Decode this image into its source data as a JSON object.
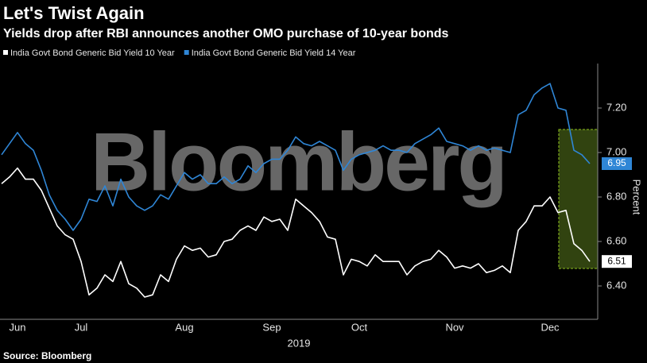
{
  "chart_data": {
    "type": "line",
    "title": "Let's Twist Again",
    "subtitle": "Yields drop after RBI announces another OMO purchase of 10-year bonds",
    "watermark": "Bloomberg",
    "source": "Source: Bloomberg",
    "y_label": "Percent",
    "x_label": "2019",
    "grid": false,
    "legend_position": "top-left",
    "categories": [
      null,
      null,
      "Jun",
      null,
      null,
      null,
      null,
      null,
      null,
      null,
      "Jul",
      null,
      null,
      null,
      null,
      null,
      null,
      null,
      null,
      null,
      null,
      null,
      null,
      "Aug",
      null,
      null,
      null,
      null,
      null,
      null,
      null,
      null,
      null,
      null,
      "Sep",
      null,
      null,
      null,
      null,
      null,
      null,
      null,
      null,
      null,
      null,
      "Oct",
      null,
      null,
      null,
      null,
      null,
      null,
      null,
      null,
      null,
      null,
      null,
      "Nov",
      null,
      null,
      null,
      null,
      null,
      null,
      null,
      null,
      null,
      null,
      null,
      "Dec",
      null,
      null,
      null,
      null,
      null
    ],
    "series": [
      {
        "name": "India Govt Bond Generic Bid Yield 10 Year",
        "color": "#ffffff",
        "values": [
          6.86,
          6.89,
          6.93,
          6.88,
          6.88,
          6.83,
          6.75,
          6.67,
          6.63,
          6.61,
          6.51,
          6.36,
          6.39,
          6.45,
          6.42,
          6.51,
          6.41,
          6.39,
          6.35,
          6.36,
          6.45,
          6.42,
          6.52,
          6.58,
          6.56,
          6.57,
          6.53,
          6.54,
          6.6,
          6.61,
          6.65,
          6.67,
          6.65,
          6.71,
          6.69,
          6.7,
          6.65,
          6.79,
          6.76,
          6.73,
          6.69,
          6.62,
          6.61,
          6.45,
          6.52,
          6.51,
          6.49,
          6.54,
          6.51,
          6.51,
          6.51,
          6.45,
          6.49,
          6.51,
          6.52,
          6.56,
          6.53,
          6.48,
          6.49,
          6.48,
          6.5,
          6.46,
          6.47,
          6.49,
          6.46,
          6.65,
          6.69,
          6.76,
          6.76,
          6.8,
          6.73,
          6.74,
          6.59,
          6.56,
          6.51
        ]
      },
      {
        "name": "India Govt Bond Generic Bid Yield 14 Year",
        "color": "#2f86d6",
        "values": [
          6.99,
          7.04,
          7.09,
          7.04,
          7.01,
          6.92,
          6.81,
          6.74,
          6.7,
          6.65,
          6.7,
          6.79,
          6.78,
          6.85,
          6.76,
          6.88,
          6.8,
          6.76,
          6.74,
          6.76,
          6.81,
          6.79,
          6.85,
          6.91,
          6.88,
          6.9,
          6.86,
          6.86,
          6.89,
          6.86,
          6.88,
          6.94,
          6.91,
          6.95,
          6.97,
          6.97,
          7.01,
          7.07,
          7.04,
          7.03,
          7.05,
          7.03,
          7.01,
          6.92,
          6.97,
          6.99,
          7.0,
          7.01,
          7.03,
          7.01,
          7.01,
          7.0,
          7.04,
          7.06,
          7.08,
          7.11,
          7.05,
          7.04,
          7.03,
          7.01,
          7.03,
          7.01,
          7.02,
          7.01,
          7.0,
          7.17,
          7.19,
          7.26,
          7.29,
          7.31,
          7.2,
          7.19,
          7.01,
          6.99,
          6.95
        ]
      }
    ],
    "ylim": [
      6.26,
      7.4
    ],
    "yticks": [
      {
        "value": 6.4,
        "label": "6.40"
      },
      {
        "value": 6.6,
        "label": "6.60"
      },
      {
        "value": 6.8,
        "label": "6.80"
      },
      {
        "value": 7.0,
        "label": "7.00"
      },
      {
        "value": 7.2,
        "label": "7.20"
      }
    ]
  }
}
